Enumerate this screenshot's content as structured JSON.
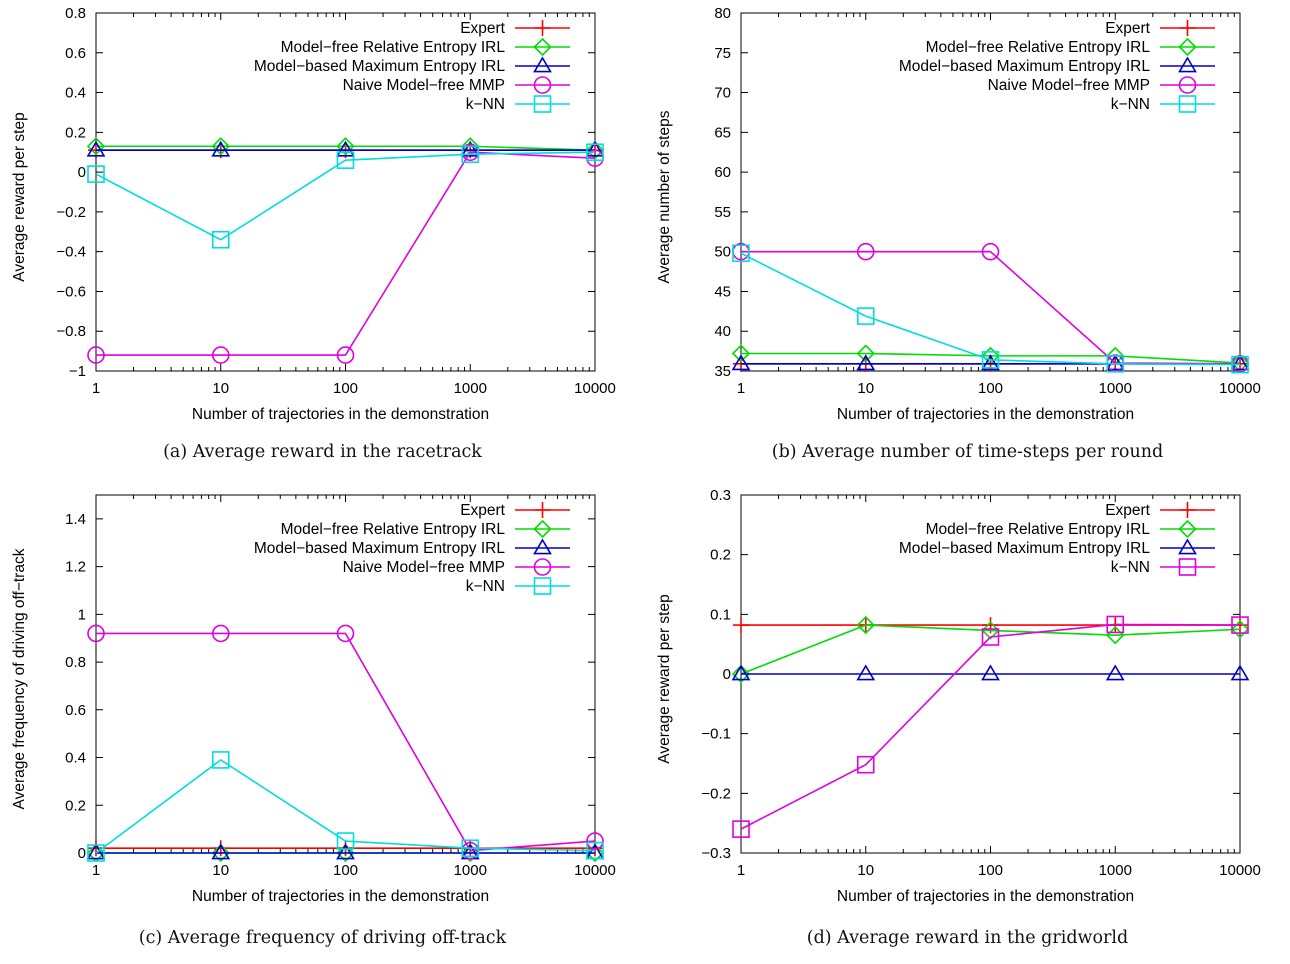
{
  "chart_data": [
    {
      "type": "line",
      "caption": "(a) Average reward in the racetrack",
      "xlabel": "Number of trajectories in the demonstration",
      "ylabel": "Average reward per step",
      "xscale": "log",
      "x": [
        1,
        10,
        100,
        1000,
        10000
      ],
      "xticks": [
        "1",
        "10",
        "100",
        "1000",
        "10000"
      ],
      "ylim": [
        -1,
        0.8
      ],
      "yticks": [
        -1,
        -0.8,
        -0.6,
        -0.4,
        -0.2,
        0,
        0.2,
        0.4,
        0.6,
        0.8
      ],
      "ytick_labels": [
        "−1",
        "−0.8",
        "−0.6",
        "−0.4",
        "−0.2",
        "0",
        "0.2",
        "0.4",
        "0.6",
        "0.8"
      ],
      "legend": "top-right",
      "series": [
        {
          "name": "Expert",
          "marker": "plus",
          "color": "#ff0000",
          "values": [
            0.11,
            0.11,
            0.11,
            0.11,
            0.11
          ]
        },
        {
          "name": "Model−free Relative Entropy IRL",
          "marker": "diamond",
          "color": "#00dd00",
          "values": [
            0.13,
            0.13,
            0.13,
            0.13,
            0.11
          ]
        },
        {
          "name": "Model−based Maximum Entropy IRL",
          "marker": "triangle",
          "color": "#0000cc",
          "values": [
            0.11,
            0.11,
            0.11,
            0.11,
            0.11
          ]
        },
        {
          "name": "Naive Model−free MMP",
          "marker": "circle",
          "color": "#e000e0",
          "values": [
            -0.92,
            -0.92,
            -0.92,
            0.1,
            0.07
          ]
        },
        {
          "name": "k−NN",
          "marker": "square",
          "color": "#00dddd",
          "values": [
            -0.01,
            -0.34,
            0.06,
            0.09,
            0.1
          ]
        }
      ]
    },
    {
      "type": "line",
      "caption": "(b) Average number of time-steps per round",
      "xlabel": "Number of trajectories in the demonstration",
      "ylabel": "Average number of steps",
      "xscale": "log",
      "x": [
        1,
        10,
        100,
        1000,
        10000
      ],
      "xticks": [
        "1",
        "10",
        "100",
        "1000",
        "10000"
      ],
      "ylim": [
        35,
        80
      ],
      "yticks": [
        35,
        40,
        45,
        50,
        55,
        60,
        65,
        70,
        75,
        80
      ],
      "ytick_labels": [
        "35",
        "40",
        "45",
        "50",
        "55",
        "60",
        "65",
        "70",
        "75",
        "80"
      ],
      "legend": "top-right",
      "series": [
        {
          "name": "Expert",
          "marker": "plus",
          "color": "#ff0000",
          "values": [
            35.9,
            35.9,
            35.9,
            35.9,
            35.9
          ]
        },
        {
          "name": "Model−free Relative Entropy IRL",
          "marker": "diamond",
          "color": "#00dd00",
          "values": [
            37.2,
            37.2,
            36.9,
            36.9,
            36.0
          ]
        },
        {
          "name": "Model−based Maximum Entropy IRL",
          "marker": "triangle",
          "color": "#0000cc",
          "values": [
            35.9,
            35.9,
            35.9,
            35.9,
            35.9
          ]
        },
        {
          "name": "Naive Model−free MMP",
          "marker": "circle",
          "color": "#e000e0",
          "values": [
            50.0,
            50.0,
            50.0,
            36.0,
            35.9
          ]
        },
        {
          "name": "k−NN",
          "marker": "square",
          "color": "#00dddd",
          "values": [
            49.8,
            41.9,
            36.4,
            35.9,
            35.8
          ]
        }
      ]
    },
    {
      "type": "line",
      "caption": "(c) Average frequency of driving off-track",
      "xlabel": "Number of trajectories in the demonstration",
      "ylabel": "Average frequency of driving off−track",
      "xscale": "log",
      "x": [
        1,
        10,
        100,
        1000,
        10000
      ],
      "xticks": [
        "1",
        "10",
        "100",
        "1000",
        "10000"
      ],
      "ylim": [
        0,
        1.5
      ],
      "yticks": [
        0,
        0.2,
        0.4,
        0.6,
        0.8,
        1,
        1.2,
        1.4
      ],
      "ytick_labels": [
        "0",
        "0.2",
        "0.4",
        "0.6",
        "0.8",
        "1",
        "1.2",
        "1.4"
      ],
      "legend": "top-right",
      "series": [
        {
          "name": "Expert",
          "marker": "plus",
          "color": "#ff0000",
          "values": [
            0.02,
            0.02,
            0.02,
            0.02,
            0.02
          ]
        },
        {
          "name": "Model−free Relative Entropy IRL",
          "marker": "diamond",
          "color": "#00dd00",
          "values": [
            0.0,
            0.0,
            0.0,
            0.0,
            0.0
          ]
        },
        {
          "name": "Model−based Maximum Entropy IRL",
          "marker": "triangle",
          "color": "#0000cc",
          "values": [
            0.0,
            0.0,
            0.0,
            0.0,
            0.0
          ]
        },
        {
          "name": "Naive Model−free MMP",
          "marker": "circle",
          "color": "#e000e0",
          "values": [
            0.92,
            0.92,
            0.92,
            0.01,
            0.05
          ]
        },
        {
          "name": "k−NN",
          "marker": "square",
          "color": "#00dddd",
          "values": [
            0.0,
            0.39,
            0.05,
            0.02,
            0.01
          ]
        }
      ]
    },
    {
      "type": "line",
      "caption": "(d) Average reward in the gridworld",
      "xlabel": "Number of trajectories in the demonstration",
      "ylabel": "Average reward per step",
      "xscale": "log",
      "x": [
        1,
        10,
        100,
        1000,
        10000
      ],
      "xticks": [
        "1",
        "10",
        "100",
        "1000",
        "10000"
      ],
      "ylim": [
        -0.3,
        0.3
      ],
      "yticks": [
        -0.3,
        -0.2,
        -0.1,
        0,
        0.1,
        0.2,
        0.3
      ],
      "ytick_labels": [
        "−0.3",
        "−0.2",
        "−0.1",
        "0",
        "0.1",
        "0.2",
        "0.3"
      ],
      "legend": "top-right",
      "series": [
        {
          "name": "Expert",
          "marker": "plus",
          "color": "#ff0000",
          "values": [
            0.082,
            0.082,
            0.082,
            0.082,
            0.082
          ]
        },
        {
          "name": "Model−free Relative Entropy IRL",
          "marker": "diamond",
          "color": "#00dd00",
          "values": [
            0.0,
            0.082,
            0.073,
            0.065,
            0.075
          ]
        },
        {
          "name": "Model−based Maximum Entropy IRL",
          "marker": "triangle",
          "color": "#0000cc",
          "values": [
            0.0,
            0.0,
            0.0,
            0.0,
            0.0
          ]
        },
        {
          "name": "k−NN",
          "marker": "square",
          "color": "#e000e0",
          "values": [
            -0.26,
            -0.152,
            0.062,
            0.083,
            0.082
          ]
        }
      ]
    }
  ]
}
